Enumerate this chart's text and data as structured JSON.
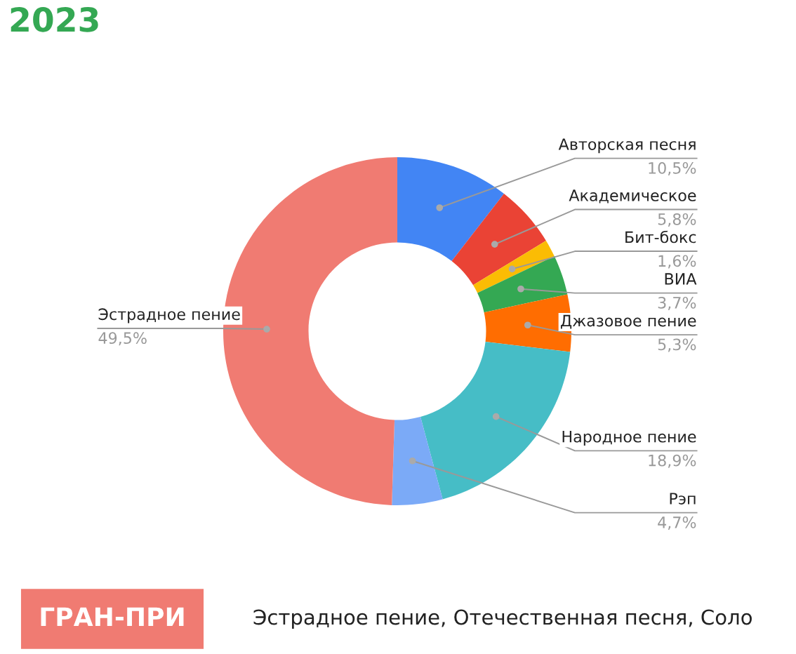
{
  "chart_data": {
    "type": "donut",
    "title": "2023",
    "categories": [
      "Авторская песня",
      "Академическое",
      "Бит-бокс",
      "ВИА",
      "Джазовое пение",
      "Народное пение",
      "Рэп",
      "Эстрадное пение"
    ],
    "values": [
      10.5,
      5.8,
      1.6,
      3.7,
      5.3,
      18.9,
      4.7,
      49.5
    ],
    "value_labels": [
      "10,5%",
      "5,8%",
      "1,6%",
      "3,7%",
      "5,3%",
      "18,9%",
      "4,7%",
      "49,5%"
    ],
    "colors": [
      "#4285f4",
      "#ea4335",
      "#fbbc04",
      "#34a853",
      "#ff6d01",
      "#46bdc6",
      "#7baaf7",
      "#f07b72"
    ],
    "annotations": [
      "ГРАН-ПРИ",
      "Эстрадное пение, Отечественная песня, Соло"
    ],
    "legend": false
  }
}
